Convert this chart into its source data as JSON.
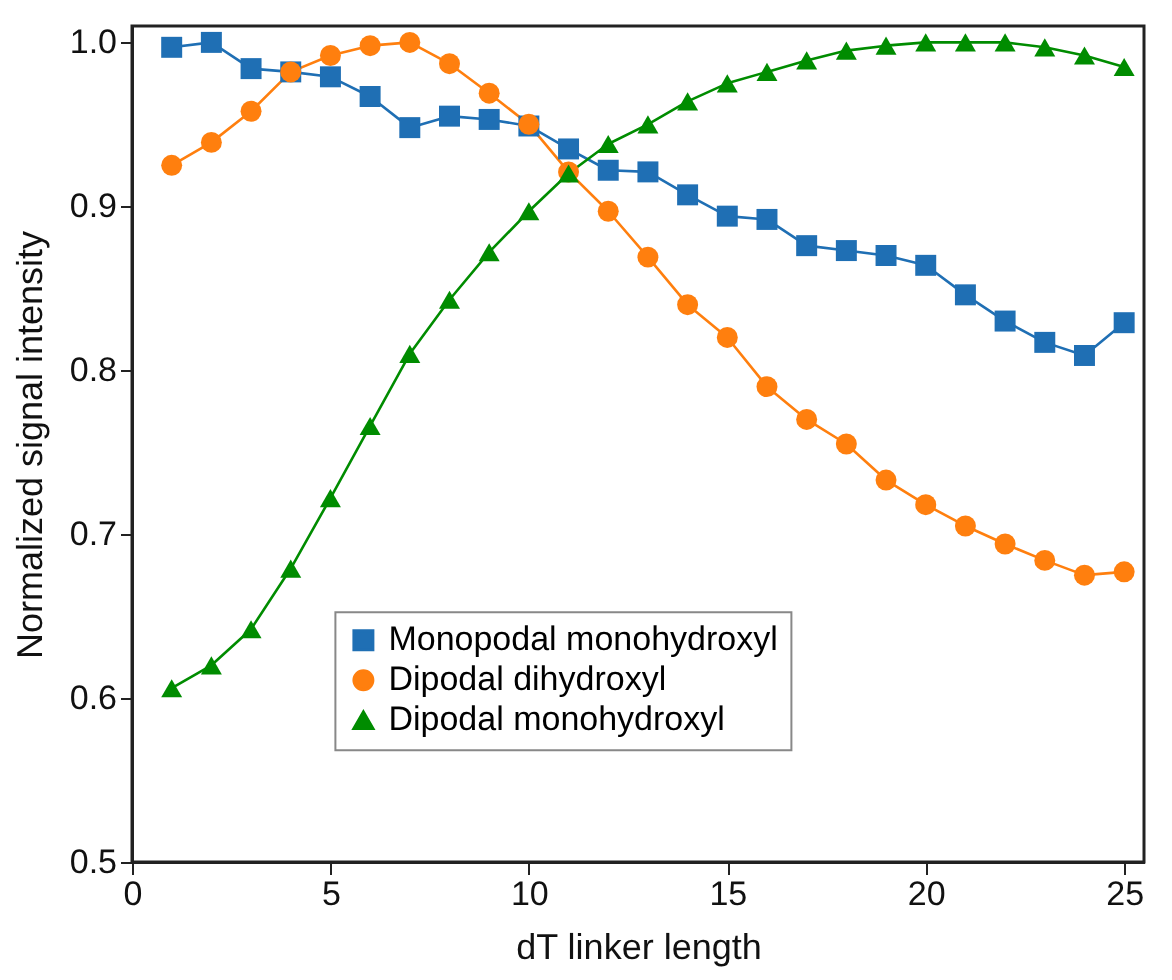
{
  "chart_data": {
    "type": "line",
    "xlabel": "dT linker length",
    "ylabel": "Normalized signal intensity",
    "x": [
      1,
      2,
      3,
      4,
      5,
      6,
      7,
      8,
      9,
      10,
      11,
      12,
      13,
      14,
      15,
      16,
      17,
      18,
      19,
      20,
      21,
      22,
      23,
      24,
      25
    ],
    "xlim": [
      0,
      25.5
    ],
    "xticks": [
      0,
      5,
      10,
      15,
      20,
      25
    ],
    "ylim": [
      0.5,
      1.01
    ],
    "yticks": [
      {
        "value": 0.5,
        "label": "0.5"
      },
      {
        "value": 0.6,
        "label": "0.6"
      },
      {
        "value": 0.7,
        "label": "0.7"
      },
      {
        "value": 0.8,
        "label": "0.8"
      },
      {
        "value": 0.9,
        "label": "0.9"
      },
      {
        "value": 1,
        "label": "1.0"
      }
    ],
    "legend": "bottom",
    "grid": false,
    "series": [
      {
        "name": "Monopodal monohydroxyl",
        "color": "#1f6fb4",
        "marker": "square",
        "values": [
          0.997,
          1.0,
          0.984,
          0.982,
          0.979,
          0.967,
          0.948,
          0.955,
          0.953,
          0.949,
          0.935,
          0.922,
          0.921,
          0.907,
          0.894,
          0.892,
          0.876,
          0.873,
          0.87,
          0.864,
          0.846,
          0.83,
          0.817,
          0.809,
          0.829
        ]
      },
      {
        "name": "Dipodal dihydroxyl",
        "color": "#ff7f0e",
        "marker": "circle",
        "values": [
          0.925,
          0.939,
          0.958,
          0.982,
          0.992,
          0.998,
          1.0,
          0.987,
          0.969,
          0.95,
          0.921,
          0.897,
          0.869,
          0.84,
          0.82,
          0.79,
          0.77,
          0.755,
          0.733,
          0.718,
          0.705,
          0.694,
          0.684,
          0.675,
          0.677
        ]
      },
      {
        "name": "Dipodal monohydroxyl",
        "color": "#008c00",
        "marker": "triangle",
        "values": [
          0.606,
          0.62,
          0.642,
          0.679,
          0.722,
          0.766,
          0.81,
          0.843,
          0.872,
          0.897,
          0.92,
          0.938,
          0.95,
          0.964,
          0.975,
          0.982,
          0.989,
          0.995,
          0.998,
          1.0,
          1.0,
          1.0,
          0.997,
          0.992,
          0.985
        ]
      }
    ]
  }
}
